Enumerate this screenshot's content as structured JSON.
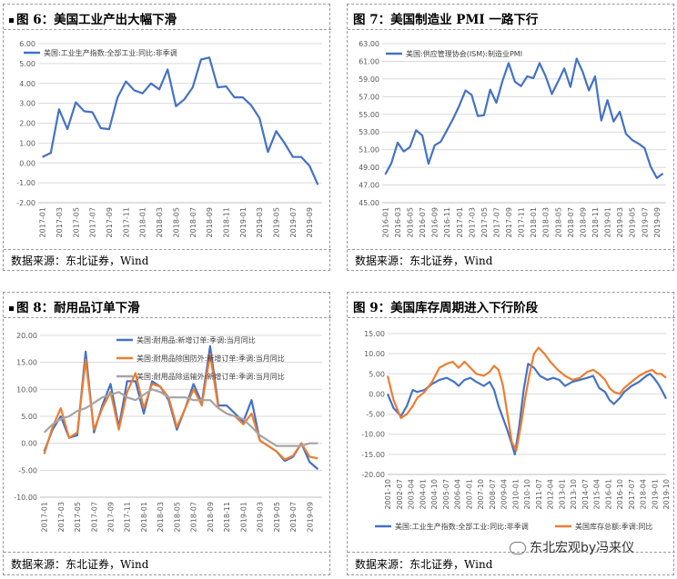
{
  "panels": [
    {
      "title": "图 6：美国工业产出大幅下滑",
      "source": "数据来源：东北证券，Wind"
    },
    {
      "title": "图 7：美国制造业 PMI 一路下行",
      "source": "数据来源：东北证券，Wind"
    },
    {
      "title": "图 8：耐用品订单下滑",
      "source": "数据来源：东北证券，Wind"
    },
    {
      "title": "图 9：美国库存周期进入下行阶段",
      "source": "数据来源：东北证券，Wind"
    }
  ],
  "watermark": "东北宏观by冯来仪",
  "colors": {
    "blue": "#4472C4",
    "orange": "#ED7D31",
    "gray": "#A5A5A5"
  },
  "chart_data": [
    {
      "type": "line",
      "x": [
        "2017-01",
        "2017-02",
        "2017-03",
        "2017-04",
        "2017-05",
        "2017-06",
        "2017-07",
        "2017-08",
        "2017-09",
        "2017-10",
        "2017-11",
        "2017-12",
        "2018-01",
        "2018-02",
        "2018-03",
        "2018-04",
        "2018-05",
        "2018-06",
        "2018-07",
        "2018-08",
        "2018-09",
        "2018-10",
        "2018-11",
        "2018-12",
        "2019-01",
        "2019-02",
        "2019-03",
        "2019-04",
        "2019-05",
        "2019-06",
        "2019-07",
        "2019-08",
        "2019-09",
        "2019-10"
      ],
      "xticks": [
        "2017-01",
        "2017-03",
        "2017-05",
        "2017-07",
        "2017-09",
        "2017-11",
        "2018-01",
        "2018-03",
        "2018-05",
        "2018-07",
        "2018-09",
        "2018-11",
        "2019-01",
        "2019-03",
        "2019-05",
        "2019-07",
        "2019-09"
      ],
      "series": [
        {
          "name": "美国:工业生产指数:全部工业:同比:非季调",
          "values": [
            0.3,
            0.5,
            2.7,
            1.7,
            3.05,
            2.6,
            2.55,
            1.75,
            1.7,
            3.3,
            4.1,
            3.65,
            3.5,
            4.0,
            3.7,
            4.7,
            2.85,
            3.2,
            3.8,
            5.2,
            5.3,
            3.8,
            3.85,
            3.3,
            3.3,
            2.9,
            2.25,
            0.55,
            1.6,
            1.0,
            0.3,
            0.3,
            -0.15,
            -1.1
          ]
        }
      ],
      "ylim": [
        -2,
        6
      ],
      "yticks": [
        "-2.00",
        "-1.00",
        "0.00",
        "1.00",
        "2.00",
        "3.00",
        "4.00",
        "5.00",
        "6.00"
      ],
      "legend": "top-left"
    },
    {
      "type": "line",
      "x": [
        "2016-01",
        "2016-02",
        "2016-03",
        "2016-04",
        "2016-05",
        "2016-06",
        "2016-07",
        "2016-08",
        "2016-09",
        "2016-10",
        "2016-11",
        "2016-12",
        "2017-01",
        "2017-02",
        "2017-03",
        "2017-04",
        "2017-05",
        "2017-06",
        "2017-07",
        "2017-08",
        "2017-09",
        "2017-10",
        "2017-11",
        "2017-12",
        "2018-01",
        "2018-02",
        "2018-03",
        "2018-04",
        "2018-05",
        "2018-06",
        "2018-07",
        "2018-08",
        "2018-09",
        "2018-10",
        "2018-11",
        "2018-12",
        "2019-01",
        "2019-02",
        "2019-03",
        "2019-04",
        "2019-05",
        "2019-06",
        "2019-07",
        "2019-08",
        "2019-09",
        "2019-10"
      ],
      "xticks": [
        "2016-01",
        "2016-03",
        "2016-05",
        "2016-07",
        "2016-09",
        "2016-11",
        "2017-01",
        "2017-03",
        "2017-05",
        "2017-07",
        "2017-09",
        "2017-11",
        "2018-01",
        "2018-03",
        "2018-05",
        "2018-07",
        "2018-09",
        "2018-11",
        "2019-01",
        "2019-03",
        "2019-05",
        "2019-07",
        "2019-09"
      ],
      "series": [
        {
          "name": "美国:供应管理协会(ISM):制造业PMI",
          "values": [
            48.2,
            49.5,
            51.8,
            50.8,
            51.3,
            53.2,
            52.6,
            49.4,
            51.5,
            51.9,
            53.2,
            54.5,
            56.0,
            57.7,
            57.2,
            54.8,
            54.9,
            57.8,
            56.3,
            58.8,
            60.8,
            58.7,
            58.2,
            59.3,
            59.1,
            60.8,
            59.3,
            57.3,
            58.7,
            60.2,
            58.1,
            61.3,
            59.8,
            57.7,
            59.3,
            54.3,
            56.6,
            54.2,
            55.3,
            52.8,
            52.1,
            51.7,
            51.2,
            49.1,
            47.8,
            48.3
          ]
        }
      ],
      "ylim": [
        45,
        63
      ],
      "yticks": [
        "45.00",
        "47.00",
        "49.00",
        "51.00",
        "53.00",
        "55.00",
        "57.00",
        "59.00",
        "61.00",
        "63.00"
      ],
      "legend": "top-left"
    },
    {
      "type": "line",
      "x": [
        "2017-01",
        "2017-02",
        "2017-03",
        "2017-04",
        "2017-05",
        "2017-06",
        "2017-07",
        "2017-08",
        "2017-09",
        "2017-10",
        "2017-11",
        "2017-12",
        "2018-01",
        "2018-02",
        "2018-03",
        "2018-04",
        "2018-05",
        "2018-06",
        "2018-07",
        "2018-08",
        "2018-09",
        "2018-10",
        "2018-11",
        "2018-12",
        "2019-01",
        "2019-02",
        "2019-03",
        "2019-04",
        "2019-05",
        "2019-06",
        "2019-07",
        "2019-08",
        "2019-09",
        "2019-10"
      ],
      "xticks": [
        "2017-01",
        "2017-03",
        "2017-05",
        "2017-07",
        "2017-09",
        "2017-11",
        "2018-01",
        "2018-03",
        "2018-05",
        "2018-07",
        "2018-09",
        "2018-11",
        "2019-01",
        "2019-03",
        "2019-05",
        "2019-07",
        "2019-09"
      ],
      "series": [
        {
          "name": "美国:耐用品:新增订单:季调:当月同比",
          "values": [
            -1.5,
            2.5,
            5.0,
            1.0,
            1.5,
            17.0,
            2.0,
            7.0,
            11.0,
            3.0,
            11.5,
            11.5,
            5.5,
            11.5,
            10.5,
            8.0,
            2.5,
            6.5,
            11.0,
            7.5,
            18.0,
            7.0,
            7.0,
            5.5,
            4.0,
            8.0,
            0.5,
            -0.5,
            -1.5,
            -3.3,
            -2.5,
            0.0,
            -3.5,
            -4.8
          ]
        },
        {
          "name": "美国:耐用品除国防外:新增订单:季调:当月同比",
          "values": [
            -2.0,
            3.0,
            6.5,
            1.0,
            2.0,
            15.5,
            2.5,
            6.5,
            9.5,
            2.5,
            9.5,
            13.0,
            6.5,
            11.0,
            10.5,
            8.5,
            3.0,
            6.5,
            10.0,
            7.0,
            16.5,
            6.5,
            5.5,
            5.0,
            3.5,
            5.5,
            0.5,
            -0.5,
            -1.5,
            -3.0,
            -2.3,
            0.0,
            -2.5,
            -2.8
          ]
        },
        {
          "name": "美国:耐用品除运输外:新增订单:季调:当月同比",
          "values": [
            2.0,
            3.5,
            4.5,
            5.0,
            6.0,
            6.5,
            7.5,
            8.5,
            9.0,
            9.5,
            8.5,
            8.0,
            9.0,
            10.0,
            9.5,
            8.5,
            8.5,
            8.5,
            8.0,
            8.0,
            8.0,
            6.5,
            5.5,
            5.0,
            4.5,
            3.0,
            1.5,
            0.5,
            -0.5,
            -0.5,
            -0.5,
            -0.5,
            0.0,
            0.0
          ]
        }
      ],
      "ylim": [
        -10,
        20
      ],
      "yticks": [
        "-10.00",
        "-5.00",
        "0.00",
        "5.00",
        "10.00",
        "15.00",
        "20.00"
      ],
      "legend": "top"
    },
    {
      "type": "line",
      "xrange": [
        2001.0,
        2019.83
      ],
      "xticks": [
        "2001-10",
        "2002-07",
        "2003-04",
        "2004-01",
        "2004-10",
        "2005-07",
        "2006-04",
        "2007-01",
        "2007-10",
        "2008-07",
        "2009-04",
        "2010-01",
        "2010-10",
        "2011-07",
        "2012-04",
        "2013-01",
        "2013-10",
        "2014-07",
        "2015-04",
        "2016-01",
        "2016-10",
        "2017-07",
        "2018-04",
        "2019-01",
        "2019-10"
      ],
      "series": [
        {
          "name": "美国:工业生产指数:全部工业:同比:非季调",
          "t": [
            2001.0,
            2001.4,
            2001.9,
            2002.3,
            2002.7,
            2003.0,
            2003.5,
            2004.0,
            2004.5,
            2005.0,
            2005.5,
            2005.8,
            2006.2,
            2006.6,
            2007.0,
            2007.5,
            2007.9,
            2008.2,
            2008.5,
            2008.8,
            2009.1,
            2009.4,
            2009.6,
            2009.9,
            2010.2,
            2010.5,
            2010.9,
            2011.3,
            2011.8,
            2012.2,
            2012.6,
            2013.0,
            2013.5,
            2014.0,
            2014.5,
            2014.9,
            2015.3,
            2015.7,
            2016.0,
            2016.3,
            2016.7,
            2017.0,
            2017.5,
            2018.0,
            2018.5,
            2018.75,
            2019.0,
            2019.3,
            2019.6,
            2019.83
          ],
          "values": [
            0.0,
            -3.5,
            -5.5,
            -3.0,
            1.0,
            0.5,
            1.0,
            2.5,
            3.5,
            4.0,
            3.0,
            2.0,
            3.5,
            4.0,
            3.0,
            2.0,
            3.0,
            1.0,
            -3.0,
            -6.0,
            -9.0,
            -12.5,
            -15.0,
            -8.0,
            1.0,
            7.5,
            6.5,
            4.5,
            3.5,
            4.0,
            3.5,
            2.0,
            3.0,
            3.5,
            4.0,
            4.5,
            1.5,
            0.5,
            -1.5,
            -2.5,
            -1.0,
            0.5,
            2.0,
            3.0,
            4.5,
            5.0,
            4.0,
            2.5,
            0.5,
            -1.2
          ]
        },
        {
          "name": "美国库存总额:季调:同比",
          "t": [
            2001.0,
            2001.4,
            2001.9,
            2002.3,
            2002.7,
            2003.0,
            2003.5,
            2004.0,
            2004.5,
            2005.0,
            2005.4,
            2005.8,
            2006.2,
            2006.6,
            2007.0,
            2007.5,
            2007.9,
            2008.2,
            2008.5,
            2008.8,
            2009.1,
            2009.4,
            2009.7,
            2010.0,
            2010.3,
            2010.6,
            2010.9,
            2011.2,
            2011.6,
            2012.0,
            2012.5,
            2013.0,
            2013.5,
            2014.0,
            2014.5,
            2014.9,
            2015.3,
            2015.7,
            2016.0,
            2016.3,
            2016.7,
            2017.0,
            2017.5,
            2018.0,
            2018.5,
            2018.9,
            2019.2,
            2019.5,
            2019.83
          ],
          "values": [
            4.5,
            -1.5,
            -6.0,
            -5.0,
            -3.0,
            -1.0,
            0.5,
            3.0,
            6.5,
            7.5,
            8.0,
            6.5,
            8.0,
            6.5,
            5.0,
            4.5,
            5.5,
            7.0,
            6.0,
            2.0,
            -5.0,
            -12.0,
            -14.0,
            -8.0,
            -1.0,
            5.0,
            10.0,
            11.5,
            10.0,
            8.0,
            6.0,
            4.5,
            3.5,
            4.0,
            5.5,
            6.0,
            5.0,
            3.5,
            1.5,
            0.5,
            0.0,
            1.5,
            3.0,
            4.5,
            5.5,
            6.0,
            5.0,
            5.0,
            4.0
          ]
        }
      ],
      "ylim": [
        -20,
        15
      ],
      "yticks": [
        "-20.00",
        "-15.00",
        "-10.00",
        "-5.00",
        "0.00",
        "5.00",
        "10.00",
        "15.00"
      ],
      "legend": "bottom"
    }
  ]
}
